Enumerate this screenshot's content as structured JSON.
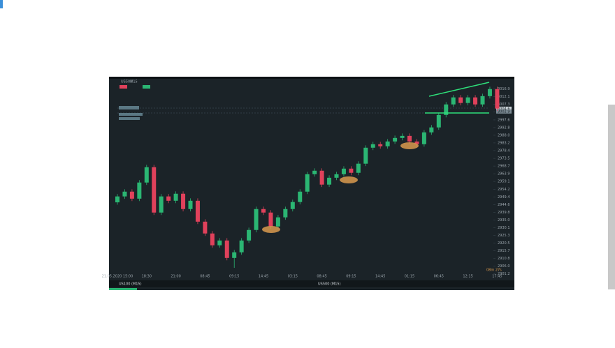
{
  "chart_data": {
    "type": "candlestick",
    "symbol": "US500",
    "timeframe": "M15",
    "tabs": [
      "US100 (M15)",
      "US500 (M15)"
    ],
    "price_tags": [
      3004.6,
      3002.9
    ],
    "countdown": "08m 27s",
    "up_color": "#2bb673",
    "down_color": "#e0415b",
    "categories": [
      "21.05.2020 15:00",
      null,
      null,
      null,
      "18:30",
      null,
      null,
      null,
      "21:00",
      null,
      null,
      null,
      "08:45",
      null,
      null,
      null,
      "09:15",
      null,
      null,
      null,
      "14:45",
      null,
      null,
      null,
      "03:15",
      null,
      null,
      null,
      "08:45",
      null,
      null,
      null,
      "09:15",
      null,
      null,
      null,
      "14:45",
      null,
      null,
      null,
      "01:15",
      null,
      null,
      null,
      "06:45",
      null,
      null,
      null,
      "12:15",
      null,
      null,
      null,
      "17:45"
    ],
    "open": [
      2946.0,
      2949.7,
      2952.7,
      2948.3,
      2958.4,
      2968.0,
      2939.6,
      2949.7,
      2947.0,
      2951.4,
      2941.8,
      2947.0,
      2933.9,
      2926.5,
      2919.1,
      2922.1,
      2911.2,
      2914.7,
      2922.1,
      2928.7,
      2941.8,
      2939.6,
      2930.9,
      2936.6,
      2941.8,
      2946.2,
      2952.7,
      2963.6,
      2965.8,
      2957.1,
      2961.4,
      2963.6,
      2967.1,
      2964.5,
      2970.2,
      2980.2,
      2982.4,
      2981.1,
      2984.1,
      2986.3,
      2987.6,
      2984.1,
      2982.4,
      2989.8,
      2992.9,
      3000.7,
      3007.3,
      3011.7,
      3008.2,
      3011.7,
      3007.3,
      3012.5,
      3016.9
    ],
    "high": [
      2951.2,
      2954.2,
      2954.2,
      2959.9,
      2969.5,
      2969.5,
      2951.2,
      2951.2,
      2952.9,
      2952.9,
      2948.5,
      2948.5,
      2935.4,
      2928.0,
      2923.6,
      2923.6,
      2916.2,
      2923.6,
      2930.2,
      2943.3,
      2943.3,
      2941.1,
      2938.1,
      2943.3,
      2947.7,
      2954.2,
      2965.1,
      2967.3,
      2967.3,
      2962.9,
      2965.1,
      2968.6,
      2968.6,
      2971.7,
      2981.7,
      2983.9,
      2983.9,
      2985.6,
      2987.8,
      2989.1,
      2989.1,
      2985.6,
      2991.3,
      2994.4,
      3002.2,
      3008.8,
      3013.2,
      3013.2,
      3013.2,
      3013.2,
      3014.0,
      3018.4,
      3018.4
    ],
    "low": [
      2944.5,
      2948.2,
      2946.8,
      2946.8,
      2956.9,
      2938.1,
      2938.1,
      2945.5,
      2945.5,
      2940.3,
      2940.3,
      2932.4,
      2925.0,
      2917.6,
      2917.6,
      2909.7,
      2905.0,
      2913.2,
      2920.6,
      2927.2,
      2938.1,
      2929.4,
      2929.4,
      2935.1,
      2940.3,
      2944.7,
      2951.2,
      2962.1,
      2955.6,
      2955.6,
      2959.9,
      2962.1,
      2963.0,
      2963.0,
      2968.7,
      2978.7,
      2979.6,
      2979.6,
      2982.6,
      2984.8,
      2982.6,
      2980.9,
      2980.9,
      2988.3,
      2991.4,
      2999.2,
      3005.8,
      3006.7,
      3006.7,
      3005.8,
      3005.8,
      3011.0,
      3003.2
    ],
    "close": [
      2949.7,
      2952.7,
      2948.3,
      2958.4,
      2968.0,
      2939.6,
      2949.7,
      2947.0,
      2951.4,
      2941.8,
      2947.0,
      2933.9,
      2926.5,
      2919.1,
      2922.1,
      2911.2,
      2914.7,
      2922.1,
      2928.7,
      2941.8,
      2939.6,
      2930.9,
      2936.6,
      2941.8,
      2946.2,
      2952.7,
      2963.6,
      2965.8,
      2957.1,
      2961.4,
      2963.6,
      2967.1,
      2964.5,
      2970.2,
      2980.2,
      2982.4,
      2981.1,
      2984.1,
      2986.3,
      2987.6,
      2984.1,
      2982.4,
      2989.8,
      2992.9,
      3000.7,
      3007.3,
      3011.7,
      3008.2,
      3011.7,
      3007.3,
      3012.5,
      3016.9,
      3004.7
    ],
    "ylim": [
      2898.9,
      3022.9
    ],
    "yticks": [
      3016.9,
      3012.1,
      3007.3,
      3002.5,
      2997.6,
      2992.8,
      {
        "value": 2988.0,
        "label": "2988.0"
      },
      2983.2,
      2978.4,
      2973.5,
      2968.7,
      2963.9,
      2959.1,
      2954.2,
      2949.4,
      2944.6,
      2939.8,
      {
        "value": 2935.0,
        "label": "2935.0"
      },
      2930.1,
      2925.3,
      2920.5,
      2915.7,
      2910.8,
      {
        "value": 2906.0,
        "label": "2906.0"
      },
      2901.2
    ]
  }
}
